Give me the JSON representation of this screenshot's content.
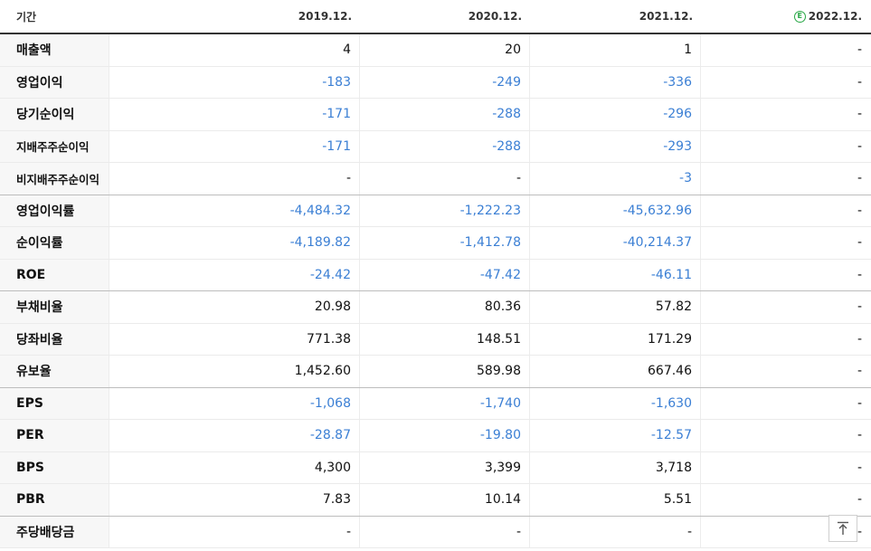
{
  "header": {
    "label": "기간",
    "periods": [
      "2019.12.",
      "2020.12.",
      "2021.12.",
      "2022.12."
    ],
    "estimate_badge": "E"
  },
  "rows": [
    {
      "label": "매출액",
      "values": [
        "4",
        "20",
        "1",
        "-"
      ]
    },
    {
      "label": "영업이익",
      "values": [
        "-183",
        "-249",
        "-336",
        "-"
      ]
    },
    {
      "label": "당기순이익",
      "values": [
        "-171",
        "-288",
        "-296",
        "-"
      ]
    },
    {
      "label": "지배주주순이익",
      "values": [
        "-171",
        "-288",
        "-293",
        "-"
      ]
    },
    {
      "label": "비지배주주순이익",
      "values": [
        "-",
        "-",
        "-3",
        "-"
      ]
    },
    {
      "label": "영업이익률",
      "values": [
        "-4,484.32",
        "-1,222.23",
        "-45,632.96",
        "-"
      ]
    },
    {
      "label": "순이익률",
      "values": [
        "-4,189.82",
        "-1,412.78",
        "-40,214.37",
        "-"
      ]
    },
    {
      "label": "ROE",
      "values": [
        "-24.42",
        "-47.42",
        "-46.11",
        "-"
      ]
    },
    {
      "label": "부채비율",
      "values": [
        "20.98",
        "80.36",
        "57.82",
        "-"
      ]
    },
    {
      "label": "당좌비율",
      "values": [
        "771.38",
        "148.51",
        "171.29",
        "-"
      ]
    },
    {
      "label": "유보율",
      "values": [
        "1,452.60",
        "589.98",
        "667.46",
        "-"
      ]
    },
    {
      "label": "EPS",
      "values": [
        "-1,068",
        "-1,740",
        "-1,630",
        "-"
      ]
    },
    {
      "label": "PER",
      "values": [
        "-28.87",
        "-19.80",
        "-12.57",
        "-"
      ]
    },
    {
      "label": "BPS",
      "values": [
        "4,300",
        "3,399",
        "3,718",
        "-"
      ]
    },
    {
      "label": "PBR",
      "values": [
        "7.83",
        "10.14",
        "5.51",
        "-"
      ]
    },
    {
      "label": "주당배당금",
      "values": [
        "-",
        "-",
        "-",
        "-"
      ]
    }
  ],
  "colors": {
    "negative": "#3b7fd4",
    "estimate": "#28a745"
  },
  "scroll_top_icon": "arrow-up-to-top-icon"
}
